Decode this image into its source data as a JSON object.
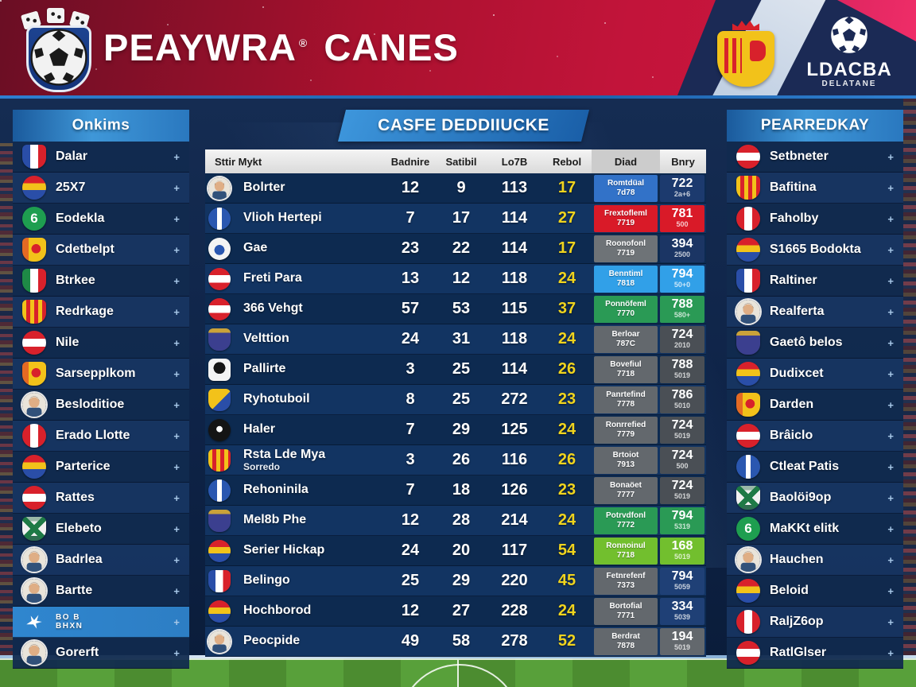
{
  "header": {
    "title_part1": "PEAYWRA",
    "title_mark": "®",
    "title_part2": "CANES",
    "league_logo_text": "LDACBA",
    "league_logo_subtext": "DELATANE"
  },
  "ui": {
    "expand_glyph": "+",
    "accent_yellow": "#f0d41e",
    "header_red": "#c2143a",
    "navy": "#1b2a55",
    "panel_blue": "#3f97d8"
  },
  "left_sidebar": {
    "title": "Onkims",
    "items": [
      {
        "label": "Dalar",
        "icon": "shield-fr"
      },
      {
        "label": "25X7",
        "icon": "circle-es"
      },
      {
        "label": "Eodekla",
        "icon": "circle-green-6",
        "glyph": "6"
      },
      {
        "label": "Cdetbelpt",
        "icon": "crest-yellow"
      },
      {
        "label": "Btrkee",
        "icon": "shield-it"
      },
      {
        "label": "Redrkage",
        "icon": "shield-yr"
      },
      {
        "label": "Nile",
        "icon": "circle-at"
      },
      {
        "label": "Sarsepplkom",
        "icon": "crest-yellow"
      },
      {
        "label": "Besloditioe",
        "icon": "avatar"
      },
      {
        "label": "Erado Llotte",
        "icon": "circle-pe"
      },
      {
        "label": "Parterice",
        "icon": "circle-es"
      },
      {
        "label": "Rattes",
        "icon": "circle-at"
      },
      {
        "label": "Elebeto",
        "icon": "shield-x-green"
      },
      {
        "label": "Badrlea",
        "icon": "avatar"
      },
      {
        "label": "Bartte",
        "icon": "avatar"
      },
      {
        "label": "BO B",
        "label2": "BHXN",
        "icon": "white-emblem",
        "highlighted": true
      },
      {
        "label": "Gorerft",
        "icon": "avatar"
      }
    ]
  },
  "right_sidebar": {
    "title": "PEARREDKAY",
    "items": [
      {
        "label": "Setbneter",
        "icon": "circle-at"
      },
      {
        "label": "Bafitina",
        "icon": "shield-yr"
      },
      {
        "label": "Faholby",
        "icon": "circle-pe"
      },
      {
        "label": "S1665 Bodokta",
        "icon": "circle-es"
      },
      {
        "label": "Raltiner",
        "icon": "shield-fr"
      },
      {
        "label": "Realferta",
        "icon": "avatar"
      },
      {
        "label": "Gaetô belos",
        "icon": "crest-purple"
      },
      {
        "label": "Dudixcet",
        "icon": "circle-es"
      },
      {
        "label": "Darden",
        "icon": "crest-yellow"
      },
      {
        "label": "Brâiclo",
        "icon": "circle-at"
      },
      {
        "label": "Ctleat Patis",
        "icon": "circle-blue-stripe"
      },
      {
        "label": "Baolöi9op",
        "icon": "shield-x-green"
      },
      {
        "label": "MaKKt elitk",
        "icon": "circle-green-6",
        "glyph": "6"
      },
      {
        "label": "Hauchen",
        "icon": "avatar"
      },
      {
        "label": "Beloid",
        "icon": "circle-es"
      },
      {
        "label": "RaljZ6op",
        "icon": "circle-pe"
      },
      {
        "label": "RatlGlser",
        "icon": "circle-at"
      }
    ]
  },
  "center": {
    "banner": "CASFE DEDDIIUCKE",
    "columns": [
      "Sttir Mykt",
      "Badnire",
      "Satibil",
      "Lo7B",
      "Rebol",
      "Diad",
      "Bnry"
    ],
    "rows": [
      {
        "name": "Bolrter",
        "icon": "avatar",
        "stats": [
          "12",
          "9",
          "113",
          "17"
        ],
        "badge": {
          "label": "Romtdüal",
          "num": "7d78",
          "color": "#3272c8"
        },
        "value": {
          "main": "722",
          "sub": "2a+6",
          "bg": "#1c3a6e"
        }
      },
      {
        "name": "Vlioh Hertepi",
        "icon": "circle-blue-stripe",
        "stats": [
          "7",
          "17",
          "114",
          "27"
        ],
        "badge": {
          "label": "Frextofleml",
          "num": "7719",
          "color": "#d91a28"
        },
        "value": {
          "main": "781",
          "sub": "500",
          "bg": "#d91a28"
        }
      },
      {
        "name": "Gae",
        "icon": "circle-wb",
        "stats": [
          "23",
          "22",
          "114",
          "17"
        ],
        "badge": {
          "label": "Roonofonl",
          "num": "7719",
          "color": "#6e7377"
        },
        "value": {
          "main": "394",
          "sub": "2500",
          "bg": "#1b3564"
        }
      },
      {
        "name": "Freti Para",
        "icon": "circle-at",
        "stats": [
          "13",
          "12",
          "118",
          "24"
        ],
        "badge": {
          "label": "Benntiml",
          "num": "7818",
          "color": "#31a0e8"
        },
        "value": {
          "main": "794",
          "sub": "50+0",
          "bg": "#31a0e8"
        }
      },
      {
        "name": "366 Vehgt",
        "icon": "circle-at",
        "stats": [
          "57",
          "53",
          "115",
          "37"
        ],
        "badge": {
          "label": "Ponnöfeml",
          "num": "7770",
          "color": "#2a9a55"
        },
        "value": {
          "main": "788",
          "sub": "580+",
          "bg": "#2a9a55"
        }
      },
      {
        "name": "Velttion",
        "icon": "crest-purple",
        "stats": [
          "24",
          "31",
          "118",
          "24"
        ],
        "badge": {
          "label": "Berloar",
          "num": "787C",
          "color": "#63686d"
        },
        "value": {
          "main": "724",
          "sub": "2010",
          "bg": "#4a4f55"
        }
      },
      {
        "name": "Pallirte",
        "icon": "square-bw",
        "stats": [
          "3",
          "25",
          "114",
          "26"
        ],
        "badge": {
          "label": "Bovefiul",
          "num": "7718",
          "color": "#63686d"
        },
        "value": {
          "main": "788",
          "sub": "5019",
          "bg": "#4a4f55"
        }
      },
      {
        "name": "Ryhotuboil",
        "icon": "crest-yb",
        "stats": [
          "8",
          "25",
          "272",
          "23"
        ],
        "badge": {
          "label": "Panrtefind",
          "num": "7778",
          "color": "#63686d"
        },
        "value": {
          "main": "786",
          "sub": "5010",
          "bg": "#4a4f55"
        }
      },
      {
        "name": "Haler",
        "icon": "circle-black",
        "stats": [
          "7",
          "29",
          "125",
          "24"
        ],
        "badge": {
          "label": "Ronrrefied",
          "num": "7779",
          "color": "#63686d"
        },
        "value": {
          "main": "724",
          "sub": "5019",
          "bg": "#4a4f55"
        }
      },
      {
        "name": "Rsta Lde Mya",
        "name2": "Sorredo",
        "icon": "shield-yr",
        "stats": [
          "3",
          "26",
          "116",
          "26"
        ],
        "badge": {
          "label": "Brtoiot",
          "num": "7913",
          "color": "#63686d"
        },
        "value": {
          "main": "724",
          "sub": "500",
          "bg": "#4a4f55"
        }
      },
      {
        "name": "Rehoninila",
        "icon": "circle-blue-stripe",
        "stats": [
          "7",
          "18",
          "126",
          "23"
        ],
        "badge": {
          "label": "Bonaöet",
          "num": "7777",
          "color": "#63686d"
        },
        "value": {
          "main": "724",
          "sub": "5019",
          "bg": "#4a4f55"
        }
      },
      {
        "name": "Mel8b Phe",
        "icon": "crest-purple",
        "stats": [
          "12",
          "28",
          "214",
          "24"
        ],
        "badge": {
          "label": "Potrvdfonl",
          "num": "7772",
          "color": "#2a9a55"
        },
        "value": {
          "main": "794",
          "sub": "5319",
          "bg": "#2a9a55"
        }
      },
      {
        "name": "Serier Hickap",
        "icon": "circle-es",
        "stats": [
          "24",
          "20",
          "117",
          "54"
        ],
        "badge": {
          "label": "Ronnoinul",
          "num": "7718",
          "color": "#72bf2e"
        },
        "value": {
          "main": "168",
          "sub": "5019",
          "bg": "#72bf2e"
        }
      },
      {
        "name": "Belingo",
        "icon": "shield-fr",
        "stats": [
          "25",
          "29",
          "220",
          "45"
        ],
        "badge": {
          "label": "Fetnrefenf",
          "num": "7373",
          "color": "#63686d"
        },
        "value": {
          "main": "794",
          "sub": "5059",
          "bg": "#1f4076"
        }
      },
      {
        "name": "Hochborod",
        "icon": "circle-es",
        "stats": [
          "12",
          "27",
          "228",
          "24"
        ],
        "badge": {
          "label": "Bortofial",
          "num": "7771",
          "color": "#63686d"
        },
        "value": {
          "main": "334",
          "sub": "5039",
          "bg": "#1f4076"
        }
      },
      {
        "name": "Peocpide",
        "icon": "avatar",
        "stats": [
          "49",
          "58",
          "278",
          "52"
        ],
        "badge": {
          "label": "Berdrat",
          "num": "7878",
          "color": "#63686d"
        },
        "value": {
          "main": "194",
          "sub": "5019",
          "bg": "#63686d"
        }
      }
    ]
  }
}
